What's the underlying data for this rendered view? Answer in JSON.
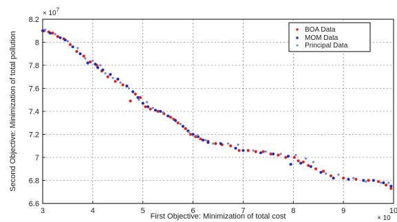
{
  "chart_data": {
    "type": "scatter",
    "xlabel": "First Objective: Minimization of total cost",
    "ylabel": "Second Objective: Minimization of total pollution",
    "x_multiplier": {
      "base": "× 10",
      "exp": ""
    },
    "y_multiplier": {
      "base": "× 10",
      "exp": "7"
    },
    "xlim": [
      3,
      10
    ],
    "ylim": [
      6.6,
      8.2
    ],
    "x_ticks": [
      "3",
      "4",
      "5",
      "6",
      "7",
      "8",
      "9",
      "10"
    ],
    "y_ticks": [
      "6.6",
      "6.8",
      "7",
      "7.2",
      "7.4",
      "7.6",
      "7.8",
      "8",
      "8.2"
    ],
    "grid": true,
    "legend_position": "top-right",
    "series": [
      {
        "name": "BOA Data",
        "color": "#e0201e",
        "points": [
          [
            3.03,
            8.1
          ],
          [
            3.12,
            8.09
          ],
          [
            3.2,
            8.08
          ],
          [
            3.3,
            8.05
          ],
          [
            3.42,
            8.03
          ],
          [
            3.55,
            7.98
          ],
          [
            3.68,
            7.92
          ],
          [
            3.82,
            7.88
          ],
          [
            3.95,
            7.83
          ],
          [
            4.08,
            7.8
          ],
          [
            4.18,
            7.75
          ],
          [
            4.3,
            7.7
          ],
          [
            4.45,
            7.66
          ],
          [
            4.6,
            7.63
          ],
          [
            4.75,
            7.49
          ],
          [
            4.85,
            7.55
          ],
          [
            4.95,
            7.52
          ],
          [
            5.05,
            7.44
          ],
          [
            5.15,
            7.42
          ],
          [
            5.3,
            7.4
          ],
          [
            5.42,
            7.38
          ],
          [
            5.55,
            7.35
          ],
          [
            5.62,
            7.33
          ],
          [
            5.7,
            7.3
          ],
          [
            5.85,
            7.25
          ],
          [
            5.95,
            7.2
          ],
          [
            6.05,
            7.18
          ],
          [
            6.15,
            7.16
          ],
          [
            6.3,
            7.14
          ],
          [
            6.45,
            7.12
          ],
          [
            6.58,
            7.11
          ],
          [
            6.75,
            7.1
          ],
          [
            6.92,
            7.06
          ],
          [
            7.1,
            7.06
          ],
          [
            7.25,
            7.05
          ],
          [
            7.4,
            7.05
          ],
          [
            7.55,
            7.03
          ],
          [
            7.7,
            7.02
          ],
          [
            7.85,
            7.0
          ],
          [
            8.02,
            7.0
          ],
          [
            8.1,
            6.97
          ],
          [
            8.2,
            6.96
          ],
          [
            8.3,
            6.93
          ],
          [
            8.45,
            6.9
          ],
          [
            8.6,
            6.88
          ],
          [
            8.75,
            6.84
          ],
          [
            9.0,
            6.82
          ],
          [
            9.25,
            6.81
          ],
          [
            9.5,
            6.8
          ],
          [
            9.7,
            6.79
          ],
          [
            9.85,
            6.76
          ],
          [
            9.95,
            6.73
          ]
        ]
      },
      {
        "name": "MOM Data",
        "color": "#1c2db0",
        "points": [
          [
            3.0,
            8.1
          ],
          [
            3.15,
            8.08
          ],
          [
            3.35,
            8.04
          ],
          [
            3.45,
            8.02
          ],
          [
            3.6,
            7.96
          ],
          [
            3.75,
            7.9
          ],
          [
            3.9,
            7.82
          ],
          [
            4.05,
            7.81
          ],
          [
            4.1,
            7.78
          ],
          [
            4.2,
            7.76
          ],
          [
            4.35,
            7.72
          ],
          [
            4.5,
            7.68
          ],
          [
            4.68,
            7.62
          ],
          [
            4.8,
            7.57
          ],
          [
            4.9,
            7.52
          ],
          [
            5.0,
            7.47
          ],
          [
            5.1,
            7.44
          ],
          [
            5.25,
            7.41
          ],
          [
            5.35,
            7.4
          ],
          [
            5.5,
            7.36
          ],
          [
            5.65,
            7.32
          ],
          [
            5.8,
            7.27
          ],
          [
            5.9,
            7.23
          ],
          [
            6.0,
            7.2
          ],
          [
            6.1,
            7.18
          ],
          [
            6.2,
            7.15
          ],
          [
            6.3,
            7.13
          ],
          [
            6.55,
            7.12
          ],
          [
            6.85,
            7.08
          ],
          [
            7.0,
            7.06
          ],
          [
            7.35,
            7.04
          ],
          [
            7.6,
            7.03
          ],
          [
            7.9,
            7.01
          ],
          [
            7.95,
            6.94
          ],
          [
            8.15,
            6.95
          ],
          [
            8.35,
            6.92
          ],
          [
            8.55,
            6.87
          ],
          [
            8.8,
            6.82
          ],
          [
            9.1,
            6.81
          ],
          [
            9.4,
            6.8
          ],
          [
            9.6,
            6.8
          ],
          [
            9.8,
            6.78
          ],
          [
            9.95,
            6.75
          ]
        ]
      },
      {
        "name": "Principal Data",
        "color": "#6f87c7",
        "points": [
          [
            3.05,
            8.11
          ],
          [
            3.25,
            8.07
          ],
          [
            3.5,
            8.01
          ],
          [
            3.7,
            7.95
          ],
          [
            3.85,
            7.86
          ],
          [
            4.0,
            7.84
          ],
          [
            4.15,
            7.8
          ],
          [
            4.25,
            7.73
          ],
          [
            4.4,
            7.69
          ],
          [
            4.55,
            7.65
          ],
          [
            4.72,
            7.6
          ],
          [
            4.92,
            7.5
          ],
          [
            5.08,
            7.48
          ],
          [
            5.2,
            7.43
          ],
          [
            5.4,
            7.39
          ],
          [
            5.58,
            7.34
          ],
          [
            5.75,
            7.29
          ],
          [
            5.92,
            7.22
          ],
          [
            6.08,
            7.19
          ],
          [
            6.25,
            7.15
          ],
          [
            6.4,
            7.12
          ],
          [
            6.7,
            7.12
          ],
          [
            6.9,
            7.11
          ],
          [
            7.2,
            7.06
          ],
          [
            7.45,
            7.05
          ],
          [
            7.75,
            7.03
          ],
          [
            8.05,
            7.02
          ],
          [
            8.25,
            6.99
          ],
          [
            8.4,
            6.96
          ],
          [
            8.65,
            6.86
          ],
          [
            8.9,
            6.85
          ],
          [
            9.2,
            6.82
          ],
          [
            9.45,
            6.79
          ],
          [
            9.75,
            6.78
          ],
          [
            9.9,
            6.78
          ]
        ]
      }
    ]
  }
}
